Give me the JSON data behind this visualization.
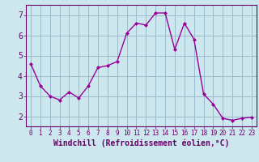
{
  "x": [
    0,
    1,
    2,
    3,
    4,
    5,
    6,
    7,
    8,
    9,
    10,
    11,
    12,
    13,
    14,
    15,
    16,
    17,
    18,
    19,
    20,
    21,
    22,
    23
  ],
  "y": [
    4.6,
    3.5,
    3.0,
    2.8,
    3.2,
    2.9,
    3.5,
    4.4,
    4.5,
    4.7,
    6.1,
    6.6,
    6.5,
    7.1,
    7.1,
    5.3,
    6.6,
    5.8,
    3.1,
    2.6,
    1.9,
    1.8,
    1.9,
    1.95
  ],
  "xlabel": "Windchill (Refroidissement éolien,°C)",
  "ylim": [
    1.5,
    7.5
  ],
  "xlim": [
    -0.5,
    23.5
  ],
  "yticks": [
    2,
    3,
    4,
    5,
    6,
    7
  ],
  "xticks": [
    0,
    1,
    2,
    3,
    4,
    5,
    6,
    7,
    8,
    9,
    10,
    11,
    12,
    13,
    14,
    15,
    16,
    17,
    18,
    19,
    20,
    21,
    22,
    23
  ],
  "line_color": "#990099",
  "marker": "D",
  "marker_size": 2,
  "bg_color": "#cce8ee",
  "grid_color": "#99bbcc",
  "axis_bg": "#cce8ee",
  "label_color": "#660066",
  "tick_color": "#660066",
  "xlabel_fontsize": 7,
  "ytick_fontsize": 7,
  "xtick_fontsize": 5.5,
  "spine_color": "#660066"
}
